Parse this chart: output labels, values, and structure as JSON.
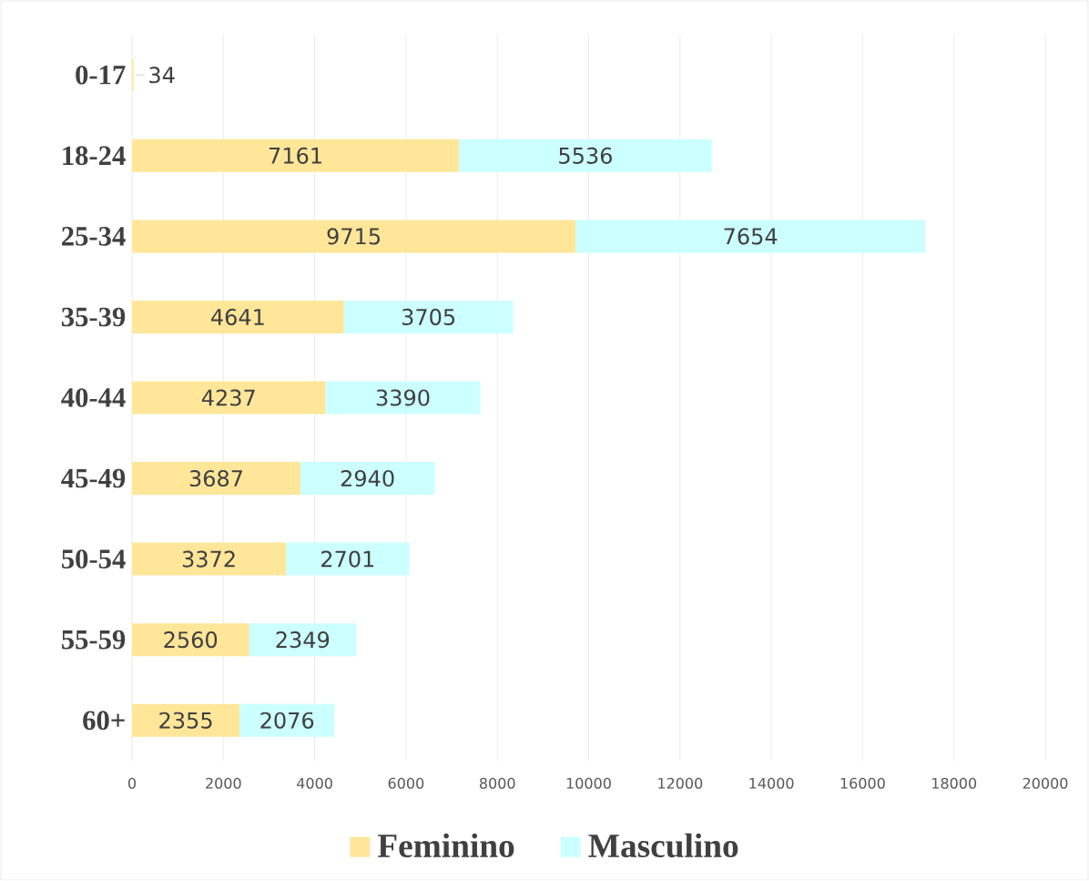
{
  "chart_data": {
    "type": "bar",
    "orientation": "horizontal",
    "stacked": true,
    "categories": [
      "0-17",
      "18-24",
      "25-34",
      "35-39",
      "40-44",
      "45-49",
      "50-54",
      "55-59",
      "60+"
    ],
    "series": [
      {
        "name": "Feminino",
        "color": "#ffe699",
        "values": [
          34,
          7161,
          9715,
          4641,
          4237,
          3687,
          3372,
          2560,
          2355
        ]
      },
      {
        "name": "Masculino",
        "color": "#ccffff",
        "values": [
          null,
          5536,
          7654,
          3705,
          3390,
          2940,
          2701,
          2349,
          2076
        ]
      }
    ],
    "xlim": [
      0,
      20000
    ],
    "xticks": [
      0,
      2000,
      4000,
      6000,
      8000,
      10000,
      12000,
      14000,
      16000,
      18000,
      20000
    ],
    "grid": "x",
    "legend": "bottom",
    "data_labels": true
  }
}
